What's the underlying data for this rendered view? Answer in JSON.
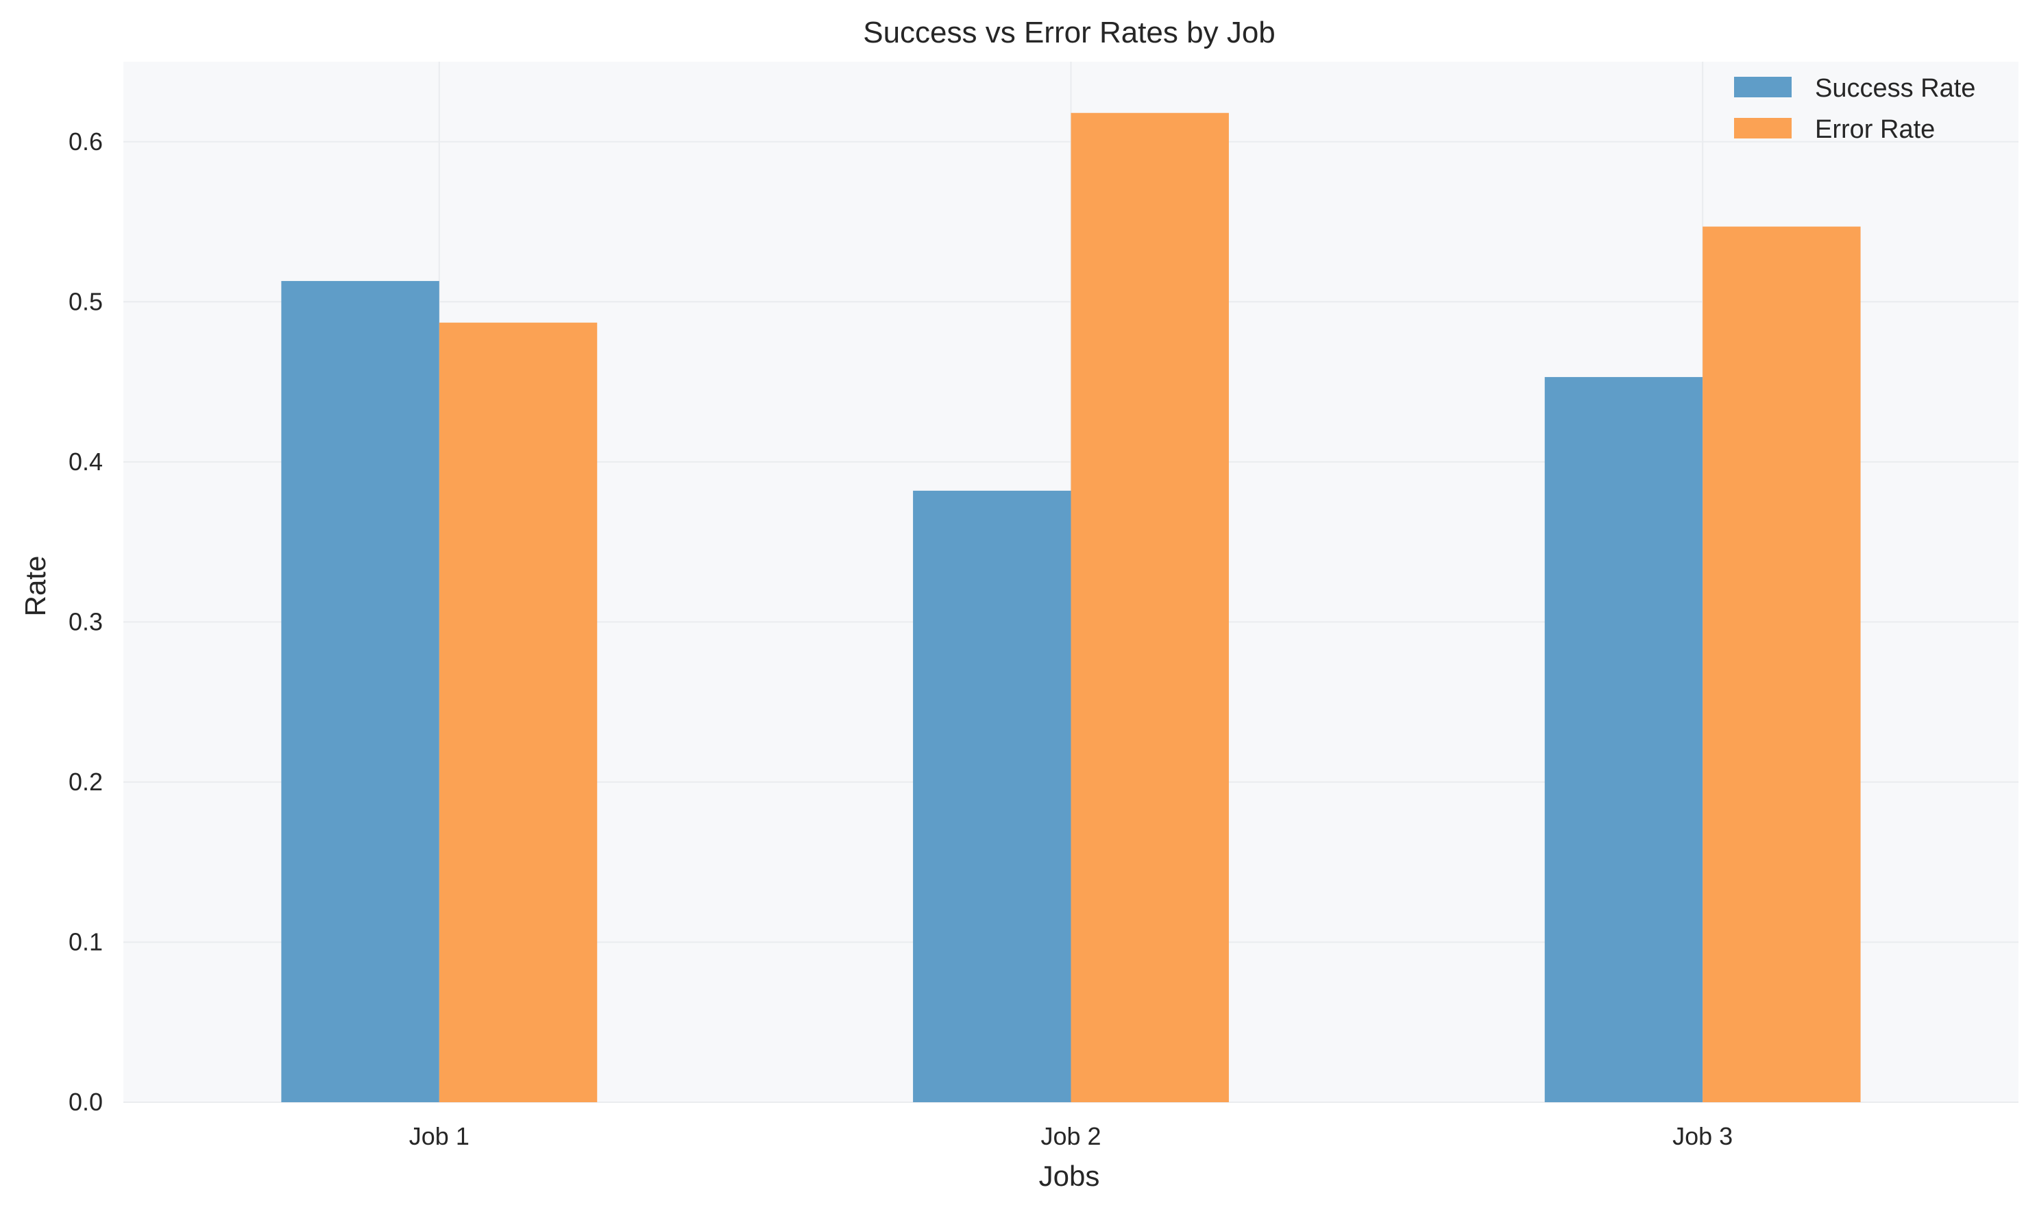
{
  "chart_data": {
    "type": "bar",
    "title": "Success vs Error Rates by Job",
    "xlabel": "Jobs",
    "ylabel": "Rate",
    "categories": [
      "Job 1",
      "Job 2",
      "Job 3"
    ],
    "series": [
      {
        "name": "Success Rate",
        "values": [
          0.513,
          0.382,
          0.453
        ],
        "color": "#5f9dc8"
      },
      {
        "name": "Error Rate",
        "values": [
          0.487,
          0.618,
          0.547
        ],
        "color": "#fba254"
      }
    ],
    "ylim": [
      0,
      0.65
    ],
    "yticks": [
      0.0,
      0.1,
      0.2,
      0.3,
      0.4,
      0.5,
      0.6
    ],
    "ytick_labels": [
      "0.0",
      "0.1",
      "0.2",
      "0.3",
      "0.4",
      "0.5",
      "0.6"
    ],
    "grid": true,
    "legend_position": "top-right",
    "plot_background": "#f7f8fa"
  }
}
